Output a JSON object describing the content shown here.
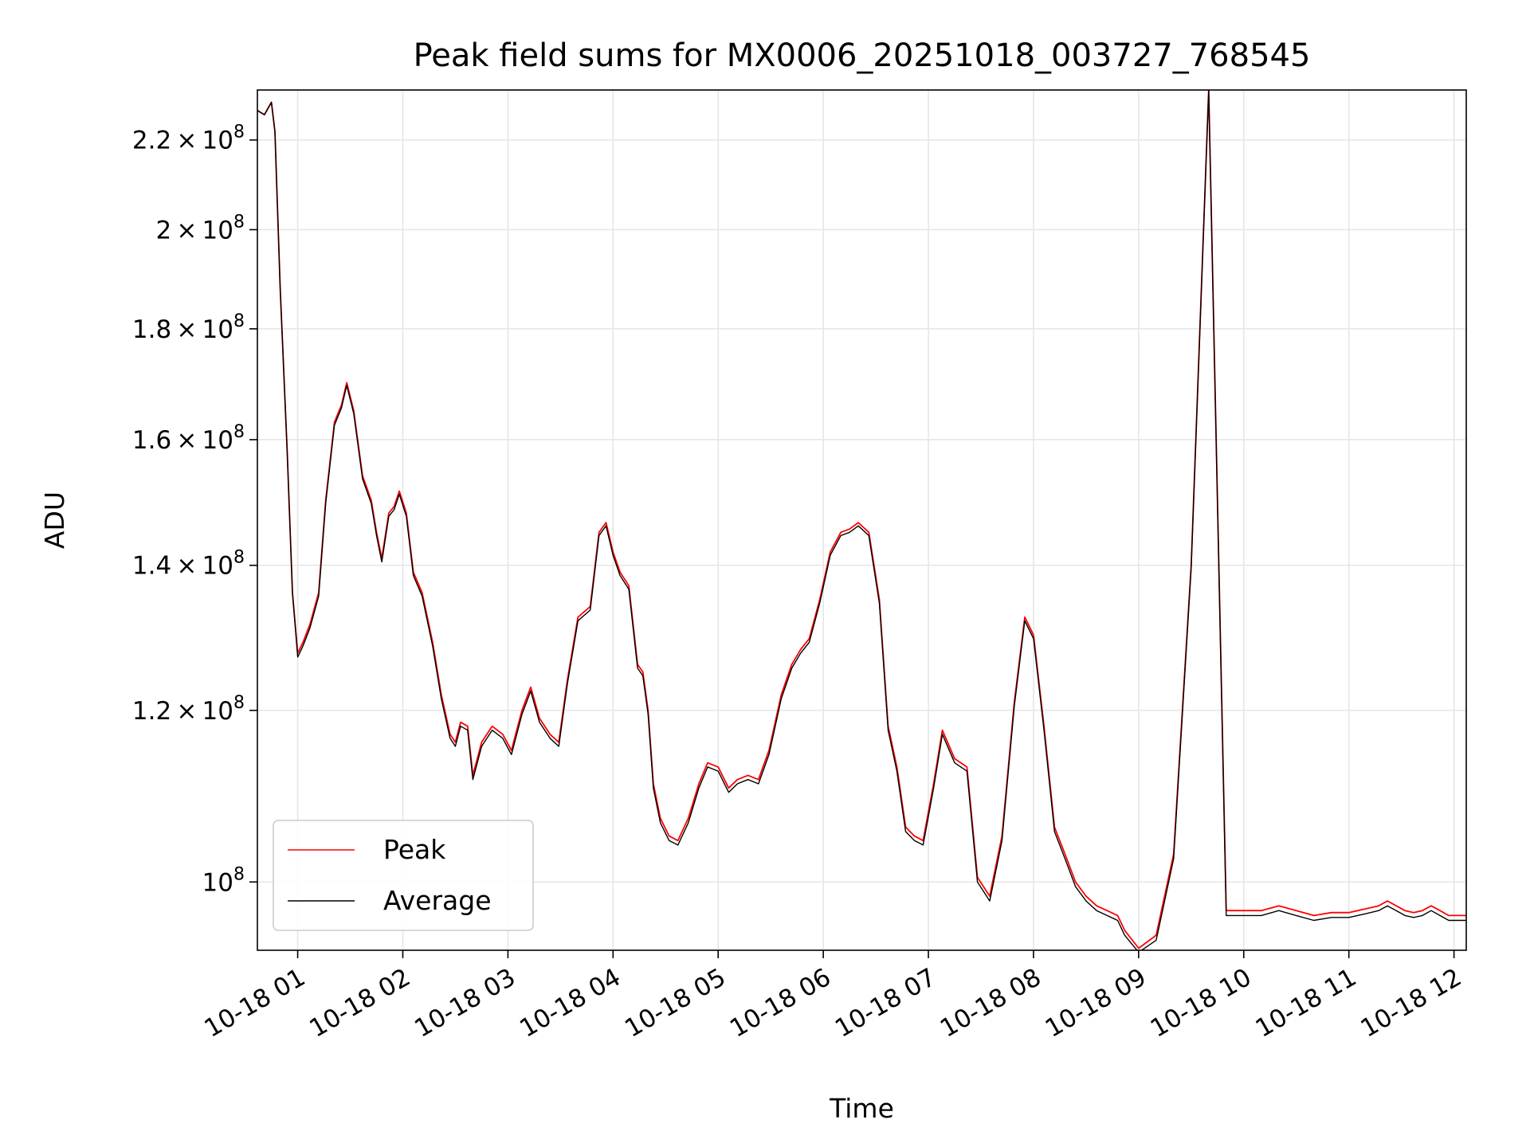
{
  "chart_data": {
    "type": "line",
    "title": "Peak field sums for MX0006_20251018_003727_768545",
    "xlabel": "Time",
    "ylabel": "ADU",
    "yscale": "log",
    "grid": true,
    "legend_position": "lower-left",
    "xlim": [
      "2025-10-18 00:37",
      "2025-10-18 12:07"
    ],
    "ylim": [
      93000000,
      232000000
    ],
    "x_ticks": [
      {
        "value": "2025-10-18 01:00",
        "label": "10-18 01"
      },
      {
        "value": "2025-10-18 02:00",
        "label": "10-18 02"
      },
      {
        "value": "2025-10-18 03:00",
        "label": "10-18 03"
      },
      {
        "value": "2025-10-18 04:00",
        "label": "10-18 04"
      },
      {
        "value": "2025-10-18 05:00",
        "label": "10-18 05"
      },
      {
        "value": "2025-10-18 06:00",
        "label": "10-18 06"
      },
      {
        "value": "2025-10-18 07:00",
        "label": "10-18 07"
      },
      {
        "value": "2025-10-18 08:00",
        "label": "10-18 08"
      },
      {
        "value": "2025-10-18 09:00",
        "label": "10-18 09"
      },
      {
        "value": "2025-10-18 10:00",
        "label": "10-18 10"
      },
      {
        "value": "2025-10-18 11:00",
        "label": "10-18 11"
      },
      {
        "value": "2025-10-18 12:00",
        "label": "10-18 12"
      }
    ],
    "y_ticks": [
      {
        "value": 100000000,
        "mant": "",
        "exp": "8"
      },
      {
        "value": 120000000,
        "mant": "1.2",
        "exp": "8"
      },
      {
        "value": 140000000,
        "mant": "1.4",
        "exp": "8"
      },
      {
        "value": 160000000,
        "mant": "1.6",
        "exp": "8"
      },
      {
        "value": 180000000,
        "mant": "1.8",
        "exp": "8"
      },
      {
        "value": 200000000,
        "mant": "2",
        "exp": "8"
      },
      {
        "value": 220000000,
        "mant": "2.2",
        "exp": "8"
      }
    ],
    "series": [
      {
        "name": "Peak",
        "color": "#ff0000",
        "x": [
          "2025-10-18 00:37",
          "2025-10-18 00:41",
          "2025-10-18 00:45",
          "2025-10-18 00:47",
          "2025-10-18 00:50",
          "2025-10-18 00:54",
          "2025-10-18 00:57",
          "2025-10-18 01:00",
          "2025-10-18 01:03",
          "2025-10-18 01:07",
          "2025-10-18 01:12",
          "2025-10-18 01:16",
          "2025-10-18 01:21",
          "2025-10-18 01:25",
          "2025-10-18 01:28",
          "2025-10-18 01:32",
          "2025-10-18 01:37",
          "2025-10-18 01:42",
          "2025-10-18 01:45",
          "2025-10-18 01:48",
          "2025-10-18 01:52",
          "2025-10-18 01:55",
          "2025-10-18 01:58",
          "2025-10-18 02:02",
          "2025-10-18 02:06",
          "2025-10-18 02:11",
          "2025-10-18 02:17",
          "2025-10-18 02:22",
          "2025-10-18 02:27",
          "2025-10-18 02:30",
          "2025-10-18 02:33",
          "2025-10-18 02:37",
          "2025-10-18 02:40",
          "2025-10-18 02:45",
          "2025-10-18 02:51",
          "2025-10-18 02:57",
          "2025-10-18 03:02",
          "2025-10-18 03:08",
          "2025-10-18 03:13",
          "2025-10-18 03:18",
          "2025-10-18 03:24",
          "2025-10-18 03:29",
          "2025-10-18 03:34",
          "2025-10-18 03:40",
          "2025-10-18 03:47",
          "2025-10-18 03:52",
          "2025-10-18 03:56",
          "2025-10-18 04:00",
          "2025-10-18 04:04",
          "2025-10-18 04:09",
          "2025-10-18 04:14",
          "2025-10-18 04:17",
          "2025-10-18 04:20",
          "2025-10-18 04:23",
          "2025-10-18 04:27",
          "2025-10-18 04:32",
          "2025-10-18 04:37",
          "2025-10-18 04:43",
          "2025-10-18 04:49",
          "2025-10-18 04:54",
          "2025-10-18 05:00",
          "2025-10-18 05:06",
          "2025-10-18 05:11",
          "2025-10-18 05:17",
          "2025-10-18 05:23",
          "2025-10-18 05:29",
          "2025-10-18 05:36",
          "2025-10-18 05:42",
          "2025-10-18 05:47",
          "2025-10-18 05:52",
          "2025-10-18 05:58",
          "2025-10-18 06:04",
          "2025-10-18 06:10",
          "2025-10-18 06:15",
          "2025-10-18 06:20",
          "2025-10-18 06:26",
          "2025-10-18 06:32",
          "2025-10-18 06:37",
          "2025-10-18 06:42",
          "2025-10-18 06:47",
          "2025-10-18 06:52",
          "2025-10-18 06:57",
          "2025-10-18 07:03",
          "2025-10-18 07:08",
          "2025-10-18 07:15",
          "2025-10-18 07:22",
          "2025-10-18 07:28",
          "2025-10-18 07:35",
          "2025-10-18 07:42",
          "2025-10-18 07:49",
          "2025-10-18 07:55",
          "2025-10-18 08:00",
          "2025-10-18 08:06",
          "2025-10-18 08:12",
          "2025-10-18 08:18",
          "2025-10-18 08:24",
          "2025-10-18 08:30",
          "2025-10-18 08:36",
          "2025-10-18 08:42",
          "2025-10-18 08:48",
          "2025-10-18 08:52",
          "2025-10-18 09:00",
          "2025-10-18 09:10",
          "2025-10-18 09:20",
          "2025-10-18 09:30",
          "2025-10-18 09:40",
          "2025-10-18 09:50",
          "2025-10-18 10:00",
          "2025-10-18 10:10",
          "2025-10-18 10:20",
          "2025-10-18 10:30",
          "2025-10-18 10:40",
          "2025-10-18 10:50",
          "2025-10-18 11:00",
          "2025-10-18 11:10",
          "2025-10-18 11:17",
          "2025-10-18 11:22",
          "2025-10-18 11:27",
          "2025-10-18 11:32",
          "2025-10-18 11:37",
          "2025-10-18 11:42",
          "2025-10-18 11:47",
          "2025-10-18 11:52",
          "2025-10-18 11:57",
          "2025-10-18 12:00",
          "2025-10-18 12:03",
          "2025-10-18 12:07"
        ],
        "values": [
          227000000,
          226000000,
          229000000,
          222000000,
          188000000,
          158000000,
          136000000,
          127500000,
          129000000,
          131500000,
          136000000,
          150000000,
          163000000,
          166000000,
          170000000,
          165000000,
          154000000,
          150000000,
          145000000,
          141000000,
          148000000,
          149000000,
          151500000,
          148000000,
          139000000,
          136000000,
          129000000,
          122000000,
          117000000,
          116000000,
          118500000,
          118000000,
          112000000,
          116000000,
          118000000,
          117000000,
          115000000,
          120000000,
          123000000,
          119000000,
          117000000,
          116000000,
          124000000,
          132500000,
          134000000,
          145000000,
          146500000,
          142000000,
          139000000,
          137000000,
          126000000,
          125000000,
          120000000,
          111000000,
          107000000,
          105000000,
          104500000,
          107000000,
          111000000,
          113500000,
          113000000,
          110500000,
          111500000,
          112000000,
          111500000,
          115000000,
          122000000,
          126000000,
          128000000,
          129500000,
          135000000,
          142000000,
          145000000,
          145500000,
          146500000,
          145000000,
          135000000,
          118000000,
          113000000,
          106000000,
          105000000,
          104500000,
          111000000,
          117500000,
          114000000,
          113000000,
          100500000,
          98500000,
          105000000,
          121000000,
          132500000,
          130000000,
          118000000,
          106000000,
          103000000,
          100000000,
          98500000,
          97500000,
          97000000,
          96500000,
          95000000,
          93200000,
          94500000,
          103000000,
          140000000,
          232000000,
          97000000,
          97000000,
          97000000,
          97500000,
          97000000,
          96500000,
          96800000,
          96800000,
          97200000,
          97500000,
          98000000,
          97500000,
          97000000,
          96800000,
          97000000,
          97500000,
          97000000,
          96500000,
          96500000,
          96500000,
          96500000
        ],
        "note": ""
      },
      {
        "name": "Average",
        "color": "#000000",
        "x": [
          "2025-10-18 00:37",
          "2025-10-18 00:41",
          "2025-10-18 00:45",
          "2025-10-18 00:47",
          "2025-10-18 00:50",
          "2025-10-18 00:54",
          "2025-10-18 00:57",
          "2025-10-18 01:00",
          "2025-10-18 01:03",
          "2025-10-18 01:07",
          "2025-10-18 01:12",
          "2025-10-18 01:16",
          "2025-10-18 01:21",
          "2025-10-18 01:25",
          "2025-10-18 01:28",
          "2025-10-18 01:32",
          "2025-10-18 01:37",
          "2025-10-18 01:42",
          "2025-10-18 01:45",
          "2025-10-18 01:48",
          "2025-10-18 01:52",
          "2025-10-18 01:55",
          "2025-10-18 01:58",
          "2025-10-18 02:02",
          "2025-10-18 02:06",
          "2025-10-18 02:11",
          "2025-10-18 02:17",
          "2025-10-18 02:22",
          "2025-10-18 02:27",
          "2025-10-18 02:30",
          "2025-10-18 02:33",
          "2025-10-18 02:37",
          "2025-10-18 02:40",
          "2025-10-18 02:45",
          "2025-10-18 02:51",
          "2025-10-18 02:57",
          "2025-10-18 03:02",
          "2025-10-18 03:08",
          "2025-10-18 03:13",
          "2025-10-18 03:18",
          "2025-10-18 03:24",
          "2025-10-18 03:29",
          "2025-10-18 03:34",
          "2025-10-18 03:40",
          "2025-10-18 03:47",
          "2025-10-18 03:52",
          "2025-10-18 03:56",
          "2025-10-18 04:00",
          "2025-10-18 04:04",
          "2025-10-18 04:09",
          "2025-10-18 04:14",
          "2025-10-18 04:17",
          "2025-10-18 04:20",
          "2025-10-18 04:23",
          "2025-10-18 04:27",
          "2025-10-18 04:32",
          "2025-10-18 04:37",
          "2025-10-18 04:43",
          "2025-10-18 04:49",
          "2025-10-18 04:54",
          "2025-10-18 05:00",
          "2025-10-18 05:06",
          "2025-10-18 05:11",
          "2025-10-18 05:17",
          "2025-10-18 05:23",
          "2025-10-18 05:29",
          "2025-10-18 05:36",
          "2025-10-18 05:42",
          "2025-10-18 05:47",
          "2025-10-18 05:52",
          "2025-10-18 05:58",
          "2025-10-18 06:04",
          "2025-10-18 06:10",
          "2025-10-18 06:15",
          "2025-10-18 06:20",
          "2025-10-18 06:26",
          "2025-10-18 06:32",
          "2025-10-18 06:37",
          "2025-10-18 06:42",
          "2025-10-18 06:47",
          "2025-10-18 06:52",
          "2025-10-18 06:57",
          "2025-10-18 07:03",
          "2025-10-18 07:08",
          "2025-10-18 07:15",
          "2025-10-18 07:22",
          "2025-10-18 07:28",
          "2025-10-18 07:35",
          "2025-10-18 07:42",
          "2025-10-18 07:49",
          "2025-10-18 07:55",
          "2025-10-18 08:00",
          "2025-10-18 08:06",
          "2025-10-18 08:12",
          "2025-10-18 08:18",
          "2025-10-18 08:24",
          "2025-10-18 08:30",
          "2025-10-18 08:36",
          "2025-10-18 08:42",
          "2025-10-18 08:48",
          "2025-10-18 08:52",
          "2025-10-18 09:00",
          "2025-10-18 09:10",
          "2025-10-18 09:20",
          "2025-10-18 09:30",
          "2025-10-18 09:40",
          "2025-10-18 09:50",
          "2025-10-18 10:00",
          "2025-10-18 10:10",
          "2025-10-18 10:20",
          "2025-10-18 10:30",
          "2025-10-18 10:40",
          "2025-10-18 10:50",
          "2025-10-18 11:00",
          "2025-10-18 11:10",
          "2025-10-18 11:17",
          "2025-10-18 11:22",
          "2025-10-18 11:27",
          "2025-10-18 11:32",
          "2025-10-18 11:37",
          "2025-10-18 11:42",
          "2025-10-18 11:47",
          "2025-10-18 11:52",
          "2025-10-18 11:57",
          "2025-10-18 12:00",
          "2025-10-18 12:03",
          "2025-10-18 12:07"
        ],
        "values": [
          227000000,
          226000000,
          229000000,
          222000000,
          188000000,
          158000000,
          136000000,
          127000000,
          128500000,
          131000000,
          135500000,
          149500000,
          162500000,
          165500000,
          169500000,
          164500000,
          153500000,
          149500000,
          144500000,
          140500000,
          147500000,
          148500000,
          151000000,
          147500000,
          138500000,
          135500000,
          128500000,
          121500000,
          116500000,
          115500000,
          118000000,
          117500000,
          111500000,
          115500000,
          117500000,
          116500000,
          114500000,
          119500000,
          122500000,
          118500000,
          116500000,
          115500000,
          123500000,
          132000000,
          133500000,
          144500000,
          146000000,
          141500000,
          138500000,
          136500000,
          125500000,
          124500000,
          119500000,
          110500000,
          106500000,
          104500000,
          104000000,
          106500000,
          110500000,
          113000000,
          112500000,
          110000000,
          111000000,
          111500000,
          111000000,
          114500000,
          121500000,
          125500000,
          127500000,
          129000000,
          134500000,
          141500000,
          144500000,
          145000000,
          146000000,
          144500000,
          134500000,
          117500000,
          112500000,
          105500000,
          104500000,
          104000000,
          110500000,
          117000000,
          113500000,
          112500000,
          100000000,
          98000000,
          104500000,
          120500000,
          132000000,
          129500000,
          117500000,
          105500000,
          102500000,
          99500000,
          98000000,
          97000000,
          96500000,
          96000000,
          94500000,
          92800000,
          94000000,
          102500000,
          139500000,
          232000000,
          96500000,
          96500000,
          96500000,
          97000000,
          96500000,
          96000000,
          96300000,
          96300000,
          96700000,
          97000000,
          97500000,
          97000000,
          96500000,
          96300000,
          96500000,
          97000000,
          96500000,
          96000000,
          96000000,
          96000000,
          96000000
        ]
      }
    ]
  }
}
